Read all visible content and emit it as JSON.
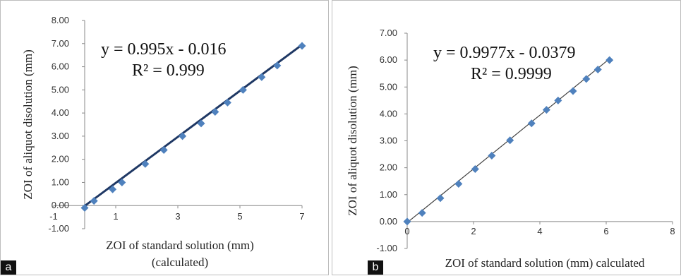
{
  "chart_data": [
    {
      "type": "scatter",
      "panel_label": "a",
      "x": [
        0,
        0.3,
        0.9,
        1.2,
        1.95,
        2.55,
        3.15,
        3.75,
        4.2,
        4.6,
        5.1,
        5.7,
        6.2,
        7.0
      ],
      "y": [
        -0.1,
        0.2,
        0.7,
        1.0,
        1.8,
        2.4,
        3.0,
        3.55,
        4.05,
        4.45,
        5.0,
        5.55,
        6.05,
        6.9
      ],
      "trendline": {
        "slope": 0.995,
        "intercept": -0.016
      },
      "equation": "y = 0.995x - 0.016",
      "r2": "R² = 0.999",
      "xlabel": "ZOI  of standard solution (mm)",
      "xlabel2": "(calculated)",
      "ylabel": "ZOI of aliquot disolution (mm)",
      "xlim": [
        -1,
        7
      ],
      "ylim": [
        -1,
        8
      ],
      "x_ticks": [
        "-1",
        "1",
        "3",
        "5",
        "7"
      ],
      "y_ticks": [
        "-1.00",
        "0.00",
        "1.00",
        "2.00",
        "3.00",
        "4.00",
        "5.00",
        "6.00",
        "7.00",
        "8.00"
      ],
      "colors": {
        "marker": "#4f81bd",
        "line": "#1f3864"
      }
    },
    {
      "type": "scatter",
      "panel_label": "b",
      "x": [
        0,
        0.45,
        1.0,
        1.55,
        2.05,
        2.55,
        3.1,
        3.75,
        4.2,
        4.55,
        5.0,
        5.4,
        5.75,
        6.1
      ],
      "y": [
        0.0,
        0.32,
        0.87,
        1.4,
        1.95,
        2.45,
        3.02,
        3.65,
        4.15,
        4.5,
        4.85,
        5.3,
        5.65,
        6.0
      ],
      "trendline": {
        "slope": 0.9977,
        "intercept": -0.0379
      },
      "equation": "y = 0.9977x - 0.0379",
      "r2": "R² = 0.9999",
      "xlabel": "ZOI  of standard solution  (mm) calculated",
      "ylabel": "ZOI of aliquot disolution (mm)",
      "xlim": [
        0,
        8
      ],
      "ylim": [
        -1,
        7
      ],
      "x_ticks": [
        "0",
        "2",
        "4",
        "6",
        "8"
      ],
      "y_ticks": [
        "-1.00",
        "0.00",
        "1.00",
        "2.00",
        "3.00",
        "4.00",
        "5.00",
        "6.00",
        "7.00"
      ],
      "colors": {
        "marker": "#4f81bd",
        "line": "#404040"
      }
    }
  ]
}
